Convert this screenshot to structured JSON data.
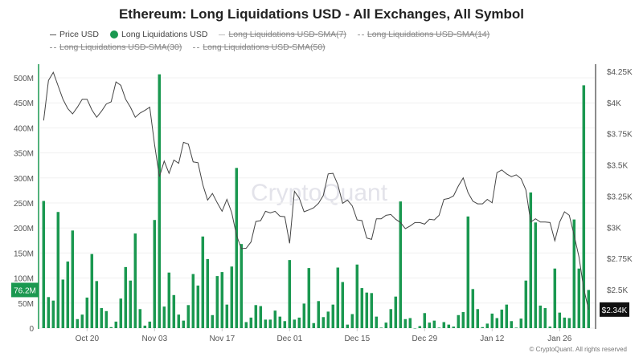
{
  "chart_data": {
    "type": "bar",
    "title": "Ethereum: Long Liquidations USD - All Exchanges, All Symbol",
    "legend": [
      {
        "label": "Price USD",
        "style": "line",
        "active": true
      },
      {
        "label": "Long Liquidations USD",
        "style": "dot",
        "active": true
      },
      {
        "label": "Long Liquidations USD-SMA(7)",
        "style": "line",
        "active": false
      },
      {
        "label": "Long Liquidations USD-SMA(14)",
        "style": "dotted",
        "active": false
      },
      {
        "label": "Long Liquidations USD-SMA(30)",
        "style": "dashed",
        "active": false
      },
      {
        "label": "Long Liquidations USD-SMA(50)",
        "style": "dashed",
        "active": false
      }
    ],
    "legend_position": "top",
    "x_tick_labels": [
      "Oct 20",
      "Nov 03",
      "Nov 17",
      "Dec 01",
      "Dec 15",
      "Dec 29",
      "Jan 12",
      "Jan 26"
    ],
    "x_tick_days_from_first": [
      9,
      23,
      37,
      51,
      65,
      79,
      93,
      107
    ],
    "first_date": "Oct 11",
    "left_axis": {
      "ticks": [
        "0",
        "50M",
        "100M",
        "150M",
        "200M",
        "250M",
        "300M",
        "350M",
        "400M",
        "450M",
        "500M"
      ],
      "range": [
        0,
        500
      ],
      "unit": "M USD"
    },
    "right_axis": {
      "ticks": [
        "$2.5K",
        "$2.75K",
        "$3K",
        "$3.25K",
        "$3.5K",
        "$3.75K",
        "$4K",
        "$4.25K"
      ],
      "range_usd": [
        2500,
        4250
      ]
    },
    "last_long_liq_label": "76.2M",
    "last_price_label": "$2.34K",
    "grid": true,
    "series": [
      {
        "name": "Long Liquidations USD",
        "axis": "left",
        "type": "bar",
        "color": "#1a9850",
        "unit": "M USD",
        "values": [
          254,
          62,
          55,
          232,
          97,
          133,
          195,
          18,
          27,
          61,
          148,
          94,
          40,
          34,
          2,
          13,
          59,
          122,
          95,
          189,
          38,
          5,
          13,
          216,
          507,
          43,
          111,
          66,
          27,
          15,
          46,
          108,
          85,
          183,
          138,
          26,
          104,
          112,
          47,
          123,
          320,
          168,
          12,
          21,
          46,
          44,
          17,
          17,
          35,
          23,
          14,
          136,
          17,
          21,
          49,
          120,
          10,
          54,
          22,
          33,
          47,
          121,
          92,
          7,
          28,
          127,
          80,
          71,
          70,
          23,
          1,
          11,
          38,
          63,
          253,
          18,
          20,
          0,
          4,
          30,
          11,
          15,
          1,
          12,
          7,
          3,
          26,
          32,
          223,
          78,
          38,
          2,
          9,
          29,
          20,
          37,
          47,
          14,
          1,
          19,
          95,
          271,
          211,
          45,
          40,
          3,
          119,
          31,
          21,
          20,
          217,
          119,
          485,
          76.2
        ]
      },
      {
        "name": "Price USD",
        "axis": "right",
        "type": "line",
        "color": "#444444",
        "values": [
          3856,
          4177,
          4242,
          4134,
          4027,
          3952,
          3909,
          3963,
          4027,
          4027,
          3941,
          3882,
          3931,
          3989,
          4006,
          4166,
          4139,
          4027,
          3963,
          3882,
          3916,
          3937,
          3963,
          3663,
          3406,
          3531,
          3432,
          3539,
          3513,
          3681,
          3668,
          3524,
          3518,
          3342,
          3218,
          3271,
          3196,
          3128,
          3224,
          3117,
          2935,
          2828,
          2832,
          2882,
          3046,
          3053,
          3128,
          3115,
          3128,
          3089,
          3085,
          2871,
          3289,
          3235,
          3124,
          3139,
          3156,
          3192,
          3256,
          3428,
          3432,
          3342,
          3192,
          3218,
          3171,
          3059,
          3053,
          2914,
          2903,
          3068,
          3068,
          3096,
          3102,
          3064,
          3038,
          2989,
          3010,
          3038,
          3038,
          3025,
          3064,
          3059,
          3096,
          3224,
          3231,
          3252,
          3331,
          3396,
          3278,
          3209,
          3188,
          3188,
          3224,
          3196,
          3438,
          3460,
          3428,
          3406,
          3421,
          3389,
          3299,
          3042,
          3068,
          3042,
          3042,
          3038,
          2892,
          3042,
          3124,
          3096,
          2935,
          2764,
          2507,
          2340
        ]
      }
    ]
  },
  "watermark": "CryptoQuant",
  "footer": "© CryptoQuant. All rights reserved"
}
